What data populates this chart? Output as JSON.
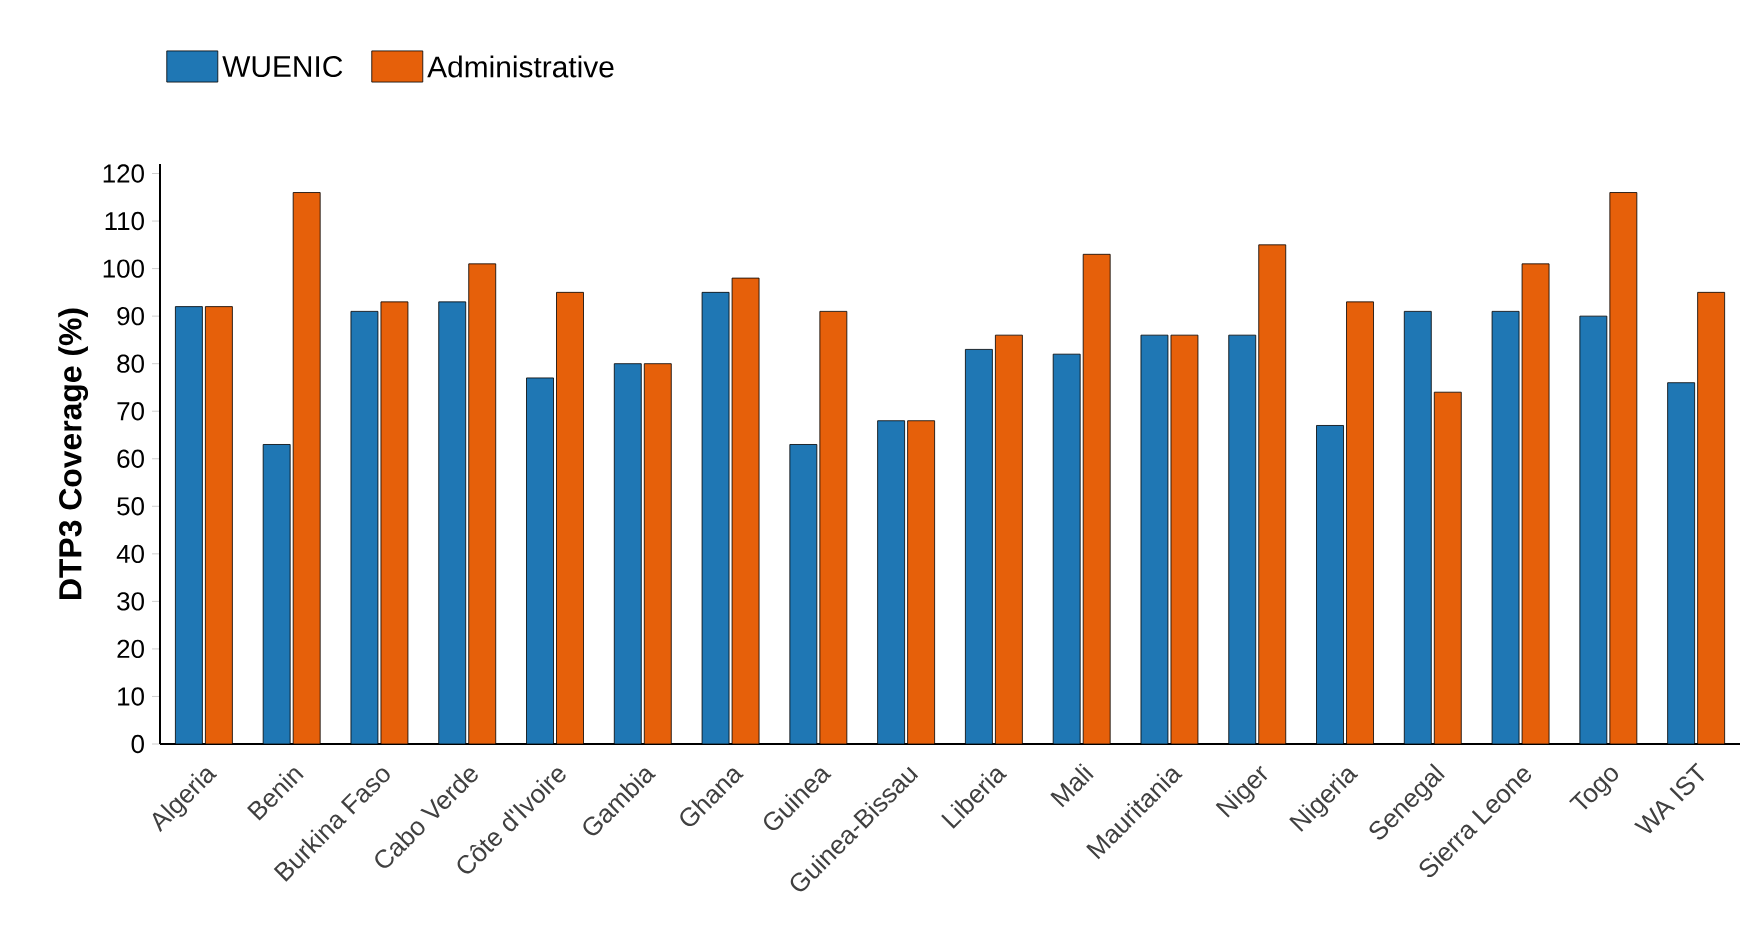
{
  "chart_data": {
    "type": "bar",
    "ylabel": "DTP3 Coverage (%)",
    "categories": [
      "Algeria",
      "Benin",
      "Burkina Faso",
      "Cabo Verde",
      "Côte d'Ivoire",
      "Gambia",
      "Ghana",
      "Guinea",
      "Guinea-Bissau",
      "Liberia",
      "Mali",
      "Mauritania",
      "Niger",
      "Nigeria",
      "Senegal",
      "Sierra Leone",
      "Togo",
      "WA IST"
    ],
    "series": [
      {
        "name": "WUENIC",
        "color": "#1f77b4",
        "values": [
          92,
          63,
          91,
          93,
          77,
          80,
          95,
          63,
          68,
          83,
          82,
          86,
          86,
          67,
          91,
          91,
          90,
          76
        ]
      },
      {
        "name": "Administrative",
        "color": "#e6600a",
        "values": [
          92,
          116,
          93,
          101,
          95,
          80,
          98,
          91,
          68,
          86,
          103,
          86,
          105,
          93,
          74,
          101,
          116,
          95
        ]
      }
    ],
    "ylim": [
      0,
      122
    ],
    "yticks": [
      0,
      10,
      20,
      30,
      40,
      50,
      60,
      70,
      80,
      90,
      100,
      110,
      120
    ],
    "grid": false,
    "legend": "top left"
  }
}
